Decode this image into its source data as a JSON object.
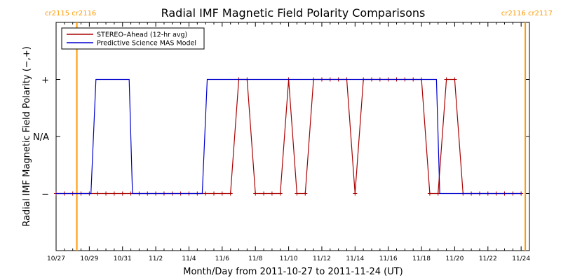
{
  "chart_data": {
    "type": "line",
    "title": "Radial IMF Magnetic Field Polarity Comparisons",
    "xlabel": "Month/Day from 2011-10-27 to 2011-11-24 (UT)",
    "ylabel": "Radial IMF Magnetic Field Polarity (−,+)",
    "x_range_days": [
      0,
      28.5
    ],
    "y_levels": [
      "−",
      "N/A",
      "+"
    ],
    "y_values": [
      -1,
      0,
      1
    ],
    "ylim": [
      -2,
      2
    ],
    "x_ticks": [
      {
        "day": 0,
        "label": "10/27"
      },
      {
        "day": 2,
        "label": "10/29"
      },
      {
        "day": 4,
        "label": "10/31"
      },
      {
        "day": 6,
        "label": "11/2"
      },
      {
        "day": 8,
        "label": "11/4"
      },
      {
        "day": 10,
        "label": "11/6"
      },
      {
        "day": 12,
        "label": "11/8"
      },
      {
        "day": 14,
        "label": "11/10"
      },
      {
        "day": 16,
        "label": "11/12"
      },
      {
        "day": 18,
        "label": "11/14"
      },
      {
        "day": 20,
        "label": "11/16"
      },
      {
        "day": 22,
        "label": "11/18"
      },
      {
        "day": 24,
        "label": "11/20"
      },
      {
        "day": 26,
        "label": "11/22"
      },
      {
        "day": 28,
        "label": "11/24"
      }
    ],
    "rotation_markers": [
      {
        "day": 1.25,
        "label": "cr2115 cr2116",
        "position": "left",
        "color": "#ff9900"
      },
      {
        "day": 28.25,
        "label": "cr2116 cr2117",
        "position": "right",
        "color": "#ff9900"
      }
    ],
    "legend_position": "top-left",
    "series": [
      {
        "name": "STEREO–Ahead (12-hr avg)",
        "color": "#aa0000",
        "markers": true,
        "x": [
          0,
          0.5,
          1,
          1.5,
          2,
          2.5,
          3,
          3.5,
          4,
          4.5,
          5,
          5.5,
          6,
          6.5,
          7,
          7.5,
          8,
          8.5,
          9,
          9.5,
          10,
          10.5,
          11,
          11.5,
          12,
          12.5,
          13,
          13.5,
          14,
          14.5,
          15,
          15.5,
          16,
          16.5,
          17,
          17.5,
          18,
          18.5,
          19,
          19.5,
          20,
          20.5,
          21,
          21.5,
          22,
          22.5,
          23,
          23.5,
          24,
          24.5,
          25,
          25.5,
          26,
          26.5,
          27,
          27.5,
          28
        ],
        "y": [
          -1,
          -1,
          -1,
          -1,
          -1,
          -1,
          -1,
          -1,
          -1,
          -1,
          -1,
          -1,
          -1,
          -1,
          -1,
          -1,
          -1,
          -1,
          -1,
          -1,
          -1,
          -1,
          1,
          1,
          -1,
          -1,
          -1,
          -1,
          1,
          -1,
          -1,
          1,
          1,
          1,
          1,
          1,
          -1,
          1,
          1,
          1,
          1,
          1,
          1,
          1,
          1,
          -1,
          -1,
          1,
          1,
          -1,
          -1,
          -1,
          -1,
          -1,
          -1,
          -1,
          -1
        ]
      },
      {
        "name": "Predictive Science MAS Model",
        "color": "#0000cc",
        "markers": false,
        "x": [
          0,
          2.1,
          2.4,
          4.4,
          4.6,
          8.8,
          9.1,
          22.9,
          23.1,
          28
        ],
        "y": [
          -1,
          -1,
          1,
          1,
          -1,
          -1,
          1,
          1,
          -1,
          -1
        ]
      }
    ]
  }
}
